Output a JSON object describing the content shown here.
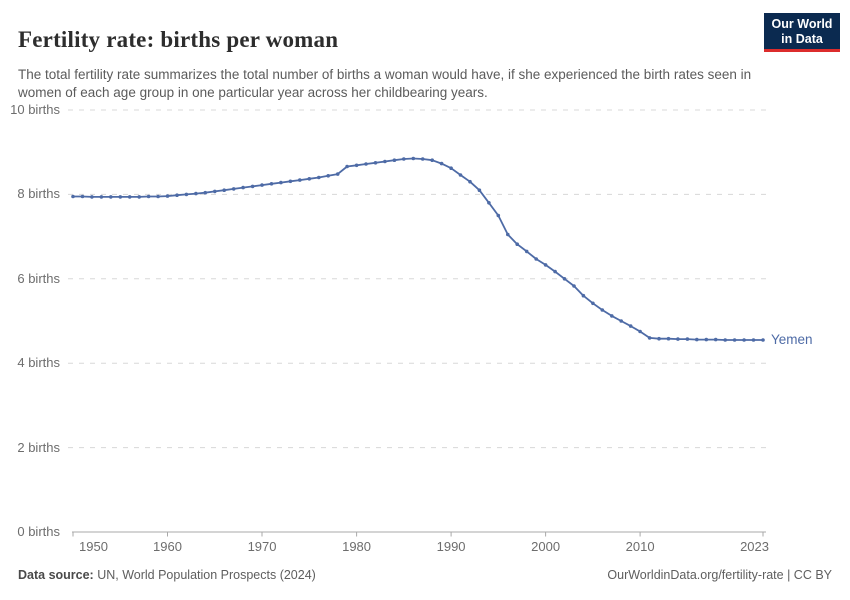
{
  "header": {
    "title": "Fertility rate: births per woman",
    "subtitle": "The total fertility rate summarizes the total number of births a woman would have, if she experienced the birth rates seen in women of each age group in one particular year across her childbearing years.",
    "logo": {
      "line1": "Our World",
      "line2": "in Data"
    }
  },
  "footer": {
    "datasource_label": "Data source:",
    "datasource_value": " UN, World Population Prospects (2024)",
    "credit": "OurWorldinData.org/fertility-rate | CC BY"
  },
  "chart_data": {
    "type": "line",
    "title": "Fertility rate: births per woman",
    "entity": "Yemen",
    "xlabel": "",
    "ylabel": "births",
    "xlim": [
      1950,
      2023
    ],
    "ylim": [
      0,
      10
    ],
    "grid": "horizontal-dashed",
    "legend_position": "end-of-line-label",
    "line_color": "#4e6ba6",
    "xticks": [
      1950,
      1960,
      1970,
      1980,
      1990,
      2000,
      2010,
      2023
    ],
    "yticks": [
      0,
      2,
      4,
      6,
      8,
      10
    ],
    "ytick_suffix": " births",
    "x": [
      1950,
      1951,
      1952,
      1953,
      1954,
      1955,
      1956,
      1957,
      1958,
      1959,
      1960,
      1961,
      1962,
      1963,
      1964,
      1965,
      1966,
      1967,
      1968,
      1969,
      1970,
      1971,
      1972,
      1973,
      1974,
      1975,
      1976,
      1977,
      1978,
      1979,
      1980,
      1981,
      1982,
      1983,
      1984,
      1985,
      1986,
      1987,
      1988,
      1989,
      1990,
      1991,
      1992,
      1993,
      1994,
      1995,
      1996,
      1997,
      1998,
      1999,
      2000,
      2001,
      2002,
      2003,
      2004,
      2005,
      2006,
      2007,
      2008,
      2009,
      2010,
      2011,
      2012,
      2013,
      2014,
      2015,
      2016,
      2017,
      2018,
      2019,
      2020,
      2021,
      2022,
      2023
    ],
    "values": [
      7.95,
      7.95,
      7.94,
      7.94,
      7.94,
      7.94,
      7.94,
      7.94,
      7.95,
      7.95,
      7.96,
      7.98,
      8.0,
      8.02,
      8.04,
      8.07,
      8.1,
      8.13,
      8.16,
      8.19,
      8.22,
      8.25,
      8.28,
      8.31,
      8.34,
      8.37,
      8.4,
      8.44,
      8.48,
      8.66,
      8.69,
      8.72,
      8.75,
      8.78,
      8.81,
      8.84,
      8.85,
      8.84,
      8.81,
      8.73,
      8.62,
      8.46,
      8.3,
      8.1,
      7.8,
      7.5,
      7.05,
      6.82,
      6.65,
      6.47,
      6.33,
      6.17,
      6.0,
      5.83,
      5.6,
      5.42,
      5.26,
      5.12,
      5.0,
      4.88,
      4.75,
      4.6,
      4.58,
      4.58,
      4.57,
      4.57,
      4.56,
      4.56,
      4.56,
      4.55,
      4.55,
      4.55,
      4.55,
      4.55
    ]
  }
}
